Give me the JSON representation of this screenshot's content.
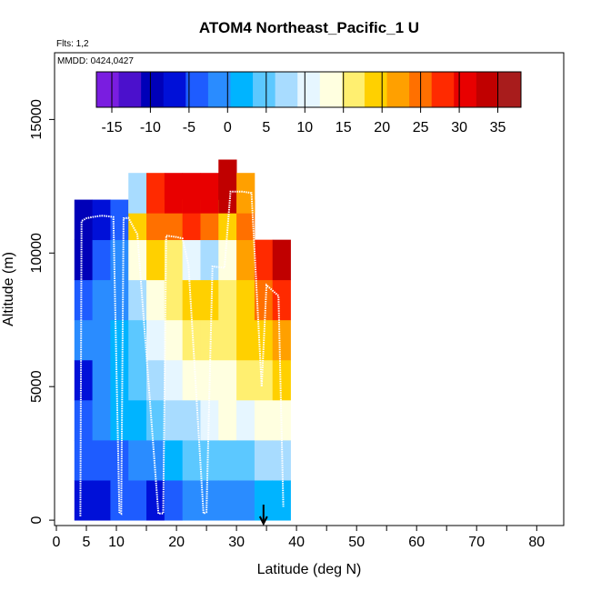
{
  "chart_data": {
    "type": "heatmap",
    "title": "ATOM4 Northeast_Pacific_1 U",
    "subtitle_flights": "Flts: 1,2",
    "subtitle_dates": "MMDD: 0424,0427",
    "xlabel": "Latitude (deg N)",
    "ylabel": "Altitude (m)",
    "xlim": [
      -0.3,
      84.5
    ],
    "ylim": [
      -200,
      17500
    ],
    "x_ticks": [
      0,
      5,
      10,
      20,
      30,
      40,
      50,
      60,
      70,
      80
    ],
    "x_minor_ticks": [
      15,
      25,
      35,
      45,
      55,
      65,
      75,
      85
    ],
    "y_ticks": [
      0,
      5000,
      10000,
      15000
    ],
    "colorbar": {
      "vmin": -17,
      "vmax": 38,
      "ticks": [
        -15,
        -10,
        -5,
        0,
        5,
        10,
        15,
        20,
        25,
        30,
        35
      ],
      "colors": [
        "#7a1de0",
        "#4b10cc",
        "#0000b8",
        "#0010d8",
        "#1e5cff",
        "#2a8cff",
        "#00b4ff",
        "#5cc8ff",
        "#a8dcff",
        "#e6f6ff",
        "#ffffe0",
        "#ffef70",
        "#ffd000",
        "#ffa000",
        "#ff7000",
        "#ff2a00",
        "#e80000",
        "#c00000",
        "#a81c1c"
      ]
    },
    "arrow_marker_latitude": 34.5,
    "flight_track": [
      [
        4.0,
        150
      ],
      [
        4.2,
        11200
      ],
      [
        5.0,
        11300
      ],
      [
        6.0,
        11350
      ],
      [
        7.5,
        11400
      ],
      [
        8.5,
        11380
      ],
      [
        9.5,
        11350
      ],
      [
        10.5,
        300
      ],
      [
        10.8,
        250
      ],
      [
        11.2,
        11300
      ],
      [
        12.0,
        11320
      ],
      [
        13.5,
        10700
      ],
      [
        17.0,
        250
      ],
      [
        17.8,
        250
      ],
      [
        18.3,
        10650
      ],
      [
        20.0,
        10600
      ],
      [
        21.0,
        10550
      ],
      [
        22.0,
        9550
      ],
      [
        24.5,
        250
      ],
      [
        25.0,
        300
      ],
      [
        26.0,
        9500
      ],
      [
        28.0,
        9450
      ],
      [
        29.0,
        12300
      ],
      [
        31.0,
        12300
      ],
      [
        32.5,
        12250
      ],
      [
        33.5,
        8000
      ],
      [
        34.2,
        5000
      ],
      [
        35.0,
        8800
      ],
      [
        36.0,
        8600
      ],
      [
        37.0,
        8400
      ],
      [
        37.8,
        500
      ]
    ],
    "cells": [
      [
        4.5,
        0,
        -6
      ],
      [
        4.5,
        1500,
        -4
      ],
      [
        4.5,
        3000,
        -3
      ],
      [
        4.5,
        4500,
        -7
      ],
      [
        4.5,
        6000,
        -2
      ],
      [
        4.5,
        7500,
        -4
      ],
      [
        4.5,
        9000,
        -10
      ],
      [
        4.5,
        10500,
        -9
      ],
      [
        7.5,
        0,
        -7
      ],
      [
        7.5,
        1500,
        -4
      ],
      [
        7.5,
        3000,
        -2
      ],
      [
        7.5,
        4500,
        -1
      ],
      [
        7.5,
        6000,
        0
      ],
      [
        7.5,
        7500,
        -2
      ],
      [
        7.5,
        9000,
        -3
      ],
      [
        7.5,
        10500,
        -8
      ],
      [
        10.5,
        0,
        -5
      ],
      [
        10.5,
        1500,
        -3
      ],
      [
        10.5,
        3000,
        1
      ],
      [
        10.5,
        4500,
        2
      ],
      [
        10.5,
        6000,
        1
      ],
      [
        10.5,
        7500,
        0
      ],
      [
        10.5,
        9000,
        -1
      ],
      [
        10.5,
        10500,
        -4
      ],
      [
        13.5,
        0,
        -4
      ],
      [
        13.5,
        1500,
        0
      ],
      [
        13.5,
        3000,
        3
      ],
      [
        13.5,
        4500,
        4
      ],
      [
        13.5,
        6000,
        6
      ],
      [
        13.5,
        7500,
        9
      ],
      [
        13.5,
        9000,
        12
      ],
      [
        13.5,
        10500,
        19
      ],
      [
        13.5,
        11500,
        9
      ],
      [
        16.5,
        0,
        -6
      ],
      [
        16.5,
        1500,
        -2
      ],
      [
        16.5,
        3000,
        5
      ],
      [
        16.5,
        4500,
        7
      ],
      [
        16.5,
        6000,
        10
      ],
      [
        16.5,
        7500,
        14
      ],
      [
        16.5,
        9000,
        18
      ],
      [
        16.5,
        10500,
        24
      ],
      [
        16.5,
        11500,
        27
      ],
      [
        19.5,
        0,
        -3
      ],
      [
        19.5,
        1500,
        2
      ],
      [
        19.5,
        3000,
        8
      ],
      [
        19.5,
        4500,
        11
      ],
      [
        19.5,
        6000,
        13
      ],
      [
        19.5,
        7500,
        17
      ],
      [
        19.5,
        9000,
        15
      ],
      [
        19.5,
        10500,
        26
      ],
      [
        19.5,
        11500,
        30
      ],
      [
        22.5,
        0,
        -2
      ],
      [
        22.5,
        1500,
        4
      ],
      [
        22.5,
        3000,
        9
      ],
      [
        22.5,
        4500,
        12
      ],
      [
        22.5,
        6000,
        15
      ],
      [
        22.5,
        7500,
        19
      ],
      [
        22.5,
        9000,
        10
      ],
      [
        22.5,
        10500,
        27
      ],
      [
        22.5,
        11500,
        31
      ],
      [
        25.5,
        0,
        -1
      ],
      [
        25.5,
        1500,
        5
      ],
      [
        25.5,
        3000,
        11
      ],
      [
        25.5,
        4500,
        13
      ],
      [
        25.5,
        6000,
        16
      ],
      [
        25.5,
        7500,
        18
      ],
      [
        25.5,
        9000,
        8
      ],
      [
        25.5,
        10500,
        26
      ],
      [
        25.5,
        11500,
        31
      ],
      [
        28.5,
        0,
        0
      ],
      [
        28.5,
        1500,
        6
      ],
      [
        28.5,
        3000,
        12
      ],
      [
        28.5,
        4500,
        14
      ],
      [
        28.5,
        6000,
        17
      ],
      [
        28.5,
        7500,
        16
      ],
      [
        28.5,
        9000,
        14
      ],
      [
        28.5,
        10500,
        19
      ],
      [
        28.5,
        11500,
        33
      ],
      [
        28.5,
        12000,
        34
      ],
      [
        31.5,
        0,
        -2
      ],
      [
        31.5,
        1500,
        4
      ],
      [
        31.5,
        3000,
        10
      ],
      [
        31.5,
        4500,
        15
      ],
      [
        31.5,
        6000,
        18
      ],
      [
        31.5,
        7500,
        20
      ],
      [
        31.5,
        9000,
        23
      ],
      [
        31.5,
        10500,
        26
      ],
      [
        31.5,
        11500,
        22
      ],
      [
        34.5,
        0,
        1
      ],
      [
        34.5,
        1500,
        7
      ],
      [
        34.5,
        3000,
        13
      ],
      [
        34.5,
        4500,
        16
      ],
      [
        34.5,
        6000,
        20
      ],
      [
        34.5,
        7500,
        25
      ],
      [
        34.5,
        9000,
        28
      ],
      [
        37.5,
        0,
        3
      ],
      [
        37.5,
        1500,
        8
      ],
      [
        37.5,
        3000,
        14
      ],
      [
        37.5,
        4500,
        18
      ],
      [
        37.5,
        6000,
        22
      ],
      [
        37.5,
        7500,
        29
      ],
      [
        37.5,
        9000,
        33
      ]
    ]
  }
}
